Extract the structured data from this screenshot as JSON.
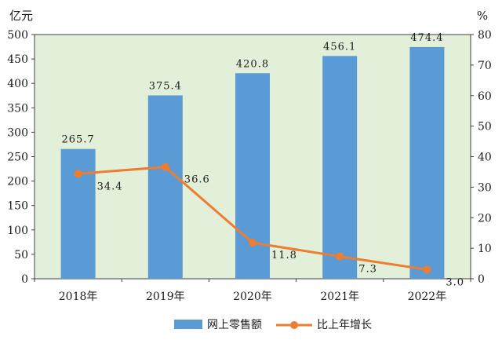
{
  "chart_data": {
    "type": "bar",
    "categories": [
      "2018年",
      "2019年",
      "2020年",
      "2021年",
      "2022年"
    ],
    "series": [
      {
        "name": "网上零售额",
        "type": "bar",
        "axis": "left",
        "color": "#5b9bd5",
        "values": [
          265.7,
          375.4,
          420.8,
          456.1,
          474.4
        ],
        "labels": [
          "265.7",
          "375.4",
          "420.8",
          "456.1",
          "474.4"
        ]
      },
      {
        "name": "比上年增长",
        "type": "line",
        "axis": "right",
        "color": "#ed7d31",
        "values": [
          34.4,
          36.6,
          11.8,
          7.3,
          3.0
        ],
        "labels": [
          "34.4",
          "36.6",
          "11.8",
          "7.3",
          "3.0"
        ]
      }
    ],
    "y_left": {
      "unit": "亿元",
      "ylim": [
        0,
        500
      ],
      "ticks": [
        "0",
        "50",
        "100",
        "150",
        "200",
        "250",
        "300",
        "350",
        "400",
        "450",
        "500"
      ]
    },
    "y_right": {
      "unit": "%",
      "ylim": [
        0,
        80
      ],
      "ticks": [
        "0",
        "10",
        "20",
        "30",
        "40",
        "50",
        "60",
        "70",
        "80"
      ]
    },
    "plot_background": "#e2efd9",
    "grid": false,
    "legend_position": "bottom"
  }
}
